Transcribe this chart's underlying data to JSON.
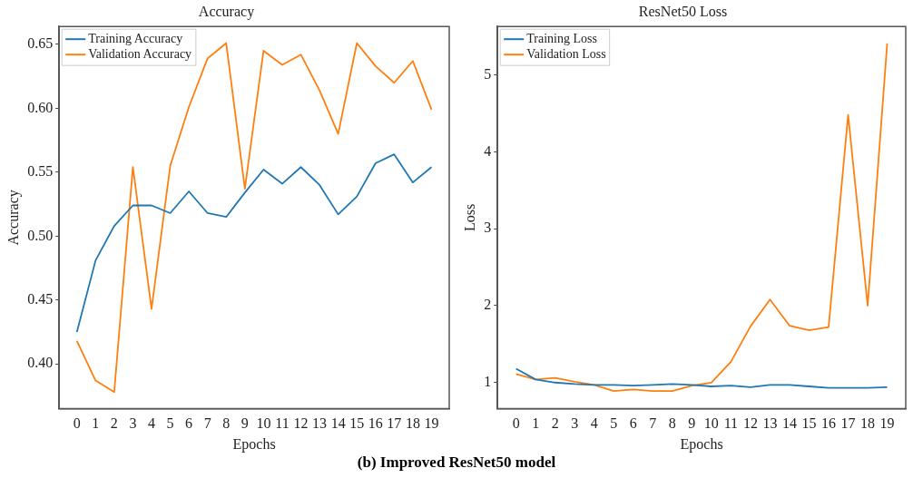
{
  "chart_data": [
    {
      "type": "line",
      "title": "Accuracy",
      "xlabel": "Epochs",
      "ylabel": "Accuracy",
      "x": [
        0,
        1,
        2,
        3,
        4,
        5,
        6,
        7,
        8,
        9,
        10,
        11,
        12,
        13,
        14,
        15,
        16,
        17,
        18,
        19
      ],
      "xlim": [
        -0.95,
        19.95
      ],
      "xticks": [
        0,
        1,
        2,
        3,
        4,
        5,
        6,
        7,
        8,
        9,
        10,
        11,
        12,
        13,
        14,
        15,
        16,
        17,
        18,
        19
      ],
      "ylim": [
        0.365,
        0.664
      ],
      "yticks": [
        {
          "value": 0.4,
          "label": "0.40"
        },
        0.45,
        {
          "value": 0.5,
          "label": "0.50"
        },
        0.55,
        {
          "value": 0.6,
          "label": "0.60"
        },
        0.65
      ],
      "series": [
        {
          "name": "Training Accuracy",
          "color": "#1f77b4",
          "values": [
            0.425,
            0.481,
            0.508,
            0.524,
            0.524,
            0.518,
            0.535,
            0.518,
            0.515,
            0.534,
            0.552,
            0.541,
            0.554,
            0.54,
            0.517,
            0.531,
            0.557,
            0.564,
            0.542,
            0.554
          ]
        },
        {
          "name": "Validation Accuracy",
          "color": "#ff7f0e",
          "values": [
            0.418,
            0.387,
            0.378,
            0.554,
            0.443,
            0.555,
            0.601,
            0.639,
            0.651,
            0.537,
            0.645,
            0.634,
            0.642,
            0.614,
            0.58,
            0.651,
            0.633,
            0.62,
            0.637,
            0.599
          ]
        }
      ],
      "legend": "top left",
      "grid": false,
      "marker": "none",
      "line_style": "solid"
    },
    {
      "type": "line",
      "title": "ResNet50 Loss",
      "xlabel": "Epochs",
      "ylabel": "Loss",
      "x": [
        0,
        1,
        2,
        3,
        4,
        5,
        6,
        7,
        8,
        9,
        10,
        11,
        12,
        13,
        14,
        15,
        16,
        17,
        18,
        19
      ],
      "xlim": [
        -0.95,
        19.95
      ],
      "xticks": [
        0,
        1,
        2,
        3,
        4,
        5,
        6,
        7,
        8,
        9,
        10,
        11,
        12,
        13,
        14,
        15,
        16,
        17,
        18,
        19
      ],
      "ylim": [
        0.66,
        5.63
      ],
      "yticks": [
        1,
        2,
        3,
        4,
        5
      ],
      "series": [
        {
          "name": "Training Loss",
          "color": "#1f77b4",
          "values": [
            1.18,
            1.04,
            1.0,
            0.98,
            0.97,
            0.97,
            0.96,
            0.97,
            0.98,
            0.97,
            0.95,
            0.96,
            0.94,
            0.97,
            0.97,
            0.95,
            0.93,
            0.93,
            0.93,
            0.94
          ]
        },
        {
          "name": "Validation Loss",
          "color": "#ff7f0e",
          "values": [
            1.11,
            1.04,
            1.06,
            1.01,
            0.97,
            0.89,
            0.91,
            0.89,
            0.89,
            0.96,
            1.0,
            1.27,
            1.73,
            2.08,
            1.74,
            1.68,
            1.72,
            4.48,
            2.0,
            5.41
          ]
        }
      ],
      "legend": "top left",
      "grid": false,
      "marker": "none",
      "line_style": "solid",
      "annotations": [
        "(b) Improved ResNet50 model"
      ]
    }
  ]
}
